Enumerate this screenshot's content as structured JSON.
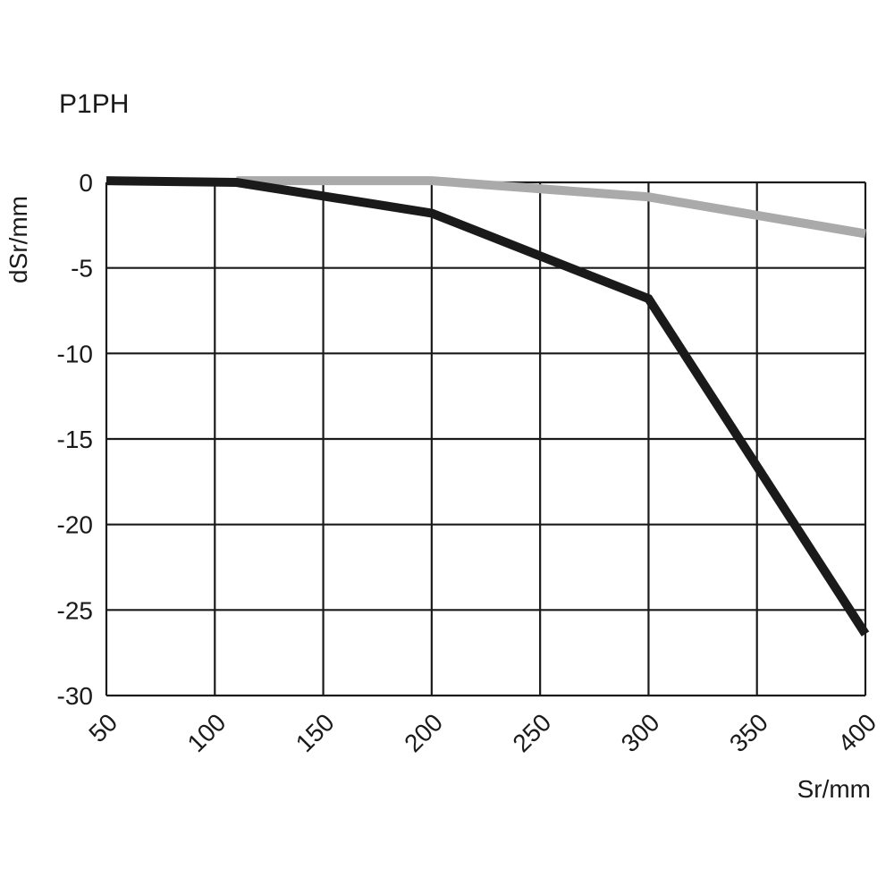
{
  "chart_data": {
    "type": "line",
    "title": "P1PH",
    "xlabel": "Sr/mm",
    "ylabel": "dSr/mm",
    "xlim": [
      50,
      400
    ],
    "ylim": [
      -30,
      0
    ],
    "xticks": [
      "50",
      "100",
      "150",
      "200",
      "250",
      "300",
      "350",
      "400"
    ],
    "yticks": [
      "0",
      "-5",
      "-10",
      "-15",
      "-20",
      "-25",
      "-30"
    ],
    "grid": true,
    "series": [
      {
        "name": "black",
        "color": "#1a1a1a",
        "x": [
          50,
          110,
          200,
          300,
          400
        ],
        "y": [
          0.1,
          0,
          -1.8,
          -6.8,
          -26.4
        ]
      },
      {
        "name": "gray",
        "color": "#aaaaaa",
        "x": [
          110,
          200,
          300,
          400
        ],
        "y": [
          0.1,
          0.1,
          -0.85,
          -3.0
        ]
      }
    ]
  }
}
